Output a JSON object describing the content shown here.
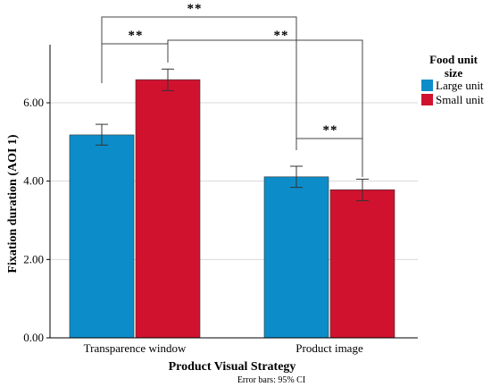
{
  "chart_data": {
    "type": "bar",
    "xlabel": "Product Visual Strategy",
    "ylabel": "Fixation duration (AOI 1)",
    "ylim": [
      0,
      7.3
    ],
    "yticks": [
      "0.00",
      "2.00",
      "4.00",
      "6.00"
    ],
    "ytick_values": [
      0,
      2,
      4,
      6
    ],
    "categories": [
      "Transparence window",
      "Product image"
    ],
    "legend_title": [
      "Food unit",
      "size"
    ],
    "legend_position": "right",
    "grid": "horizontal",
    "series": [
      {
        "name": "Large unit",
        "color": "#0c8dc9",
        "values": [
          5.18,
          4.11
        ],
        "ci_low": [
          4.92,
          3.84
        ],
        "ci_high": [
          5.45,
          4.38
        ]
      },
      {
        "name": "Small unit",
        "color": "#d0122f",
        "values": [
          6.59,
          3.78
        ],
        "ci_low": [
          6.31,
          3.5
        ],
        "ci_high": [
          6.86,
          4.05
        ]
      }
    ],
    "significance": [
      {
        "label": "**",
        "from": [
          0,
          0
        ],
        "to": [
          0,
          1
        ]
      },
      {
        "label": "**",
        "from": [
          1,
          0
        ],
        "to": [
          1,
          1
        ]
      },
      {
        "label": "**",
        "from": [
          0,
          0
        ],
        "to": [
          1,
          0
        ]
      },
      {
        "label": "**",
        "from": [
          0,
          1
        ],
        "to": [
          1,
          1
        ]
      }
    ],
    "footnote": "Error bars: 95% CI"
  }
}
